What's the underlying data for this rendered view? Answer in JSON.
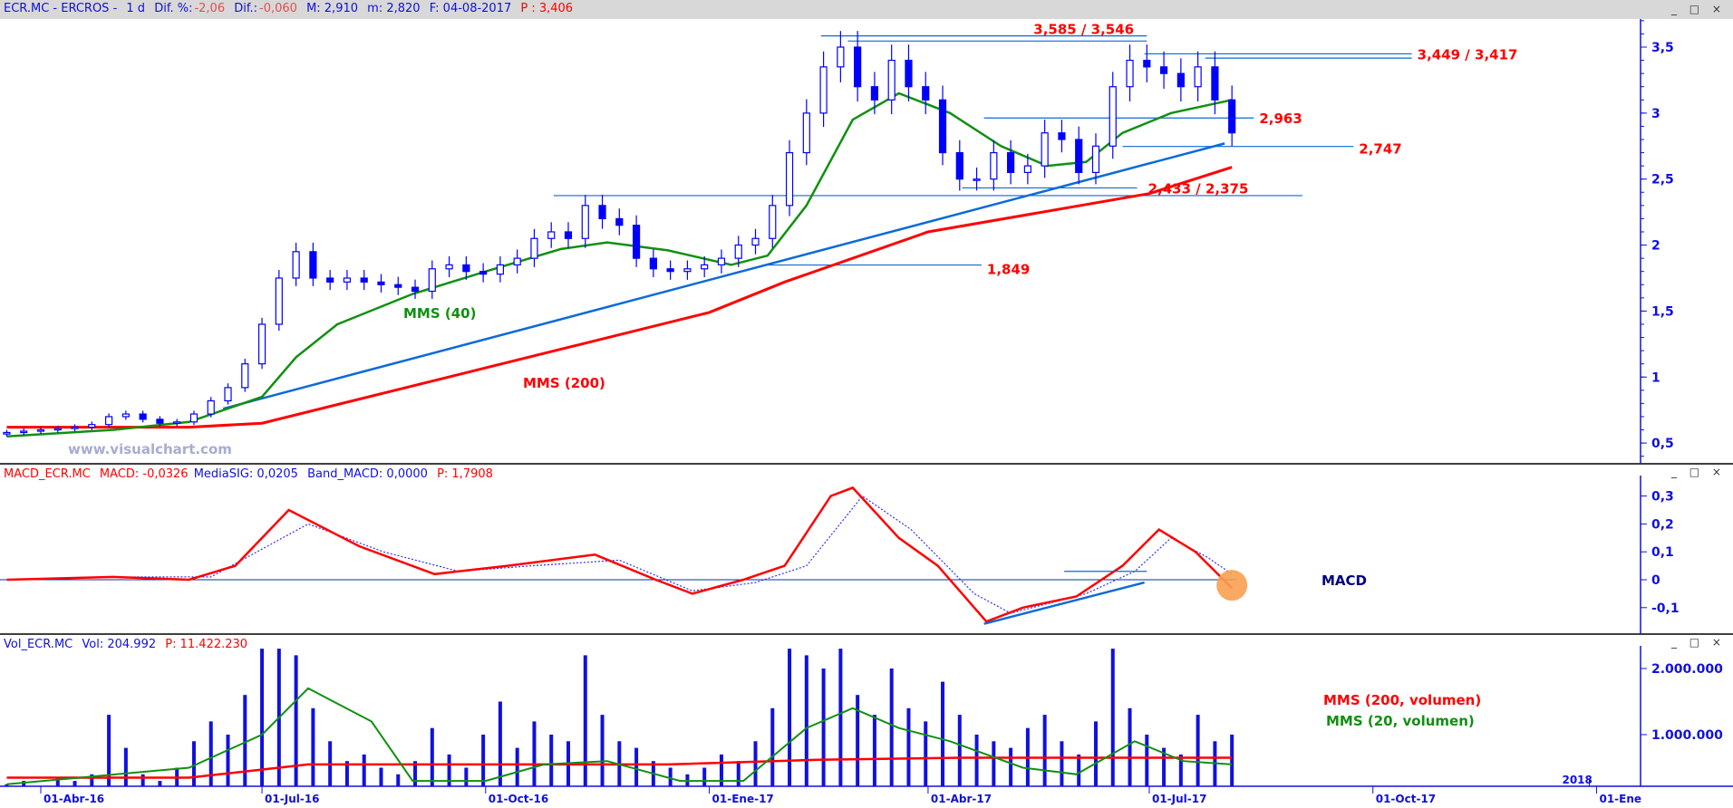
{
  "header": {
    "symbol": "ECR.MC - ERCROS -",
    "period": "1 d",
    "dif_pct_label": "Dif. %:",
    "dif_pct": "-2,06",
    "dif_label": "Dif.:",
    "dif": "-0,060",
    "max_label": "M: 2,910",
    "min_label": "m: 2,820",
    "date_label": "F: 04-08-2017",
    "price_label": "P : 3,406"
  },
  "macd_header": {
    "name": "MACD_ECR.MC",
    "macd": "MACD: -0,0326",
    "sig": "MediaSIG: 0,0205",
    "band": "Band_MACD: 0,0000",
    "p": "P: 1,7908"
  },
  "vol_header": {
    "name": "Vol_ECR.MC",
    "vol": "Vol: 204.992",
    "p": "P: 11.422.230"
  },
  "window_controls": "_ □ ×",
  "watermark": "www.visualchart.com",
  "labels": {
    "mms40": "MMS (40)",
    "mms200": "MMS (200)",
    "macd": "MACD",
    "vol200": "MMS (200, volumen)",
    "vol20": "MMS (20, volumen)"
  },
  "colors": {
    "candle": "#0000ff",
    "mms40": "#109010",
    "mms200": "#ff0000",
    "trend": "#0a6ad8",
    "level_text": "#ff0000",
    "macd": "#ff0000",
    "signal": "#3030ff",
    "highlight": "#f8a050"
  },
  "chart_data": {
    "type": "candlestick",
    "title": "ECR.MC - ERCROS - 1 d",
    "week_start": "2016-03-18",
    "weekly_close": [
      0.58,
      0.59,
      0.6,
      0.61,
      0.62,
      0.64,
      0.7,
      0.72,
      0.68,
      0.65,
      0.66,
      0.72,
      0.82,
      0.92,
      1.1,
      1.4,
      1.75,
      1.95,
      1.75,
      1.72,
      1.75,
      1.72,
      1.7,
      1.68,
      1.65,
      1.82,
      1.85,
      1.8,
      1.78,
      1.85,
      1.9,
      2.05,
      2.1,
      2.05,
      2.3,
      2.2,
      2.15,
      1.9,
      1.82,
      1.8,
      1.82,
      1.85,
      1.9,
      2.0,
      2.05,
      2.3,
      2.7,
      3.0,
      3.35,
      3.5,
      3.2,
      3.1,
      3.4,
      3.2,
      3.1,
      2.7,
      2.5,
      2.5,
      2.7,
      2.55,
      2.6,
      2.85,
      2.8,
      2.55,
      2.75,
      3.2,
      3.4,
      3.35,
      3.3,
      3.2,
      3.35,
      3.1,
      2.85
    ],
    "mms40": [
      [
        "2016-03-18",
        0.55
      ],
      [
        "2016-05-01",
        0.6
      ],
      [
        "2016-06-01",
        0.66
      ],
      [
        "2016-07-01",
        0.85
      ],
      [
        "2016-07-15",
        1.15
      ],
      [
        "2016-08-01",
        1.4
      ],
      [
        "2016-09-01",
        1.63
      ],
      [
        "2016-10-01",
        1.8
      ],
      [
        "2016-11-01",
        1.97
      ],
      [
        "2016-11-20",
        2.02
      ],
      [
        "2016-12-15",
        1.96
      ],
      [
        "2017-01-10",
        1.85
      ],
      [
        "2017-01-25",
        1.92
      ],
      [
        "2017-02-10",
        2.3
      ],
      [
        "2017-03-01",
        2.95
      ],
      [
        "2017-03-20",
        3.15
      ],
      [
        "2017-04-10",
        3.0
      ],
      [
        "2017-05-01",
        2.75
      ],
      [
        "2017-05-20",
        2.6
      ],
      [
        "2017-06-05",
        2.63
      ],
      [
        "2017-06-20",
        2.85
      ],
      [
        "2017-07-10",
        3.0
      ],
      [
        "2017-08-04",
        3.1
      ]
    ],
    "mms200": [
      [
        "2016-03-18",
        0.62
      ],
      [
        "2016-06-01",
        0.62
      ],
      [
        "2016-07-01",
        0.65
      ],
      [
        "2016-10-01",
        1.07
      ],
      [
        "2017-01-01",
        1.49
      ],
      [
        "2017-02-01",
        1.72
      ],
      [
        "2017-04-01",
        2.1
      ],
      [
        "2017-07-01",
        2.39
      ],
      [
        "2017-08-04",
        2.59
      ]
    ],
    "trendlines": [
      {
        "from": [
          "2016-06-15",
          0.76
        ],
        "to": [
          "2017-08-01",
          2.77
        ]
      }
    ],
    "levels": [
      {
        "value": 3.585,
        "from": "2017-02-16",
        "to": "2017-06-30",
        "label": "3,585 / 3,546"
      },
      {
        "value": 3.546,
        "from": "2017-02-27",
        "to": "2017-06-30",
        "label": ""
      },
      {
        "value": 3.449,
        "from": "2017-06-29",
        "to": "2017-10-17",
        "label": "3,449 / 3,417"
      },
      {
        "value": 3.417,
        "from": "2017-07-24",
        "to": "2017-10-17",
        "label": ""
      },
      {
        "value": 2.963,
        "from": "2017-04-24",
        "to": "2017-08-13",
        "label": "2,963"
      },
      {
        "value": 2.747,
        "from": "2017-06-20",
        "to": "2017-09-23",
        "label": "2,747"
      },
      {
        "value": 2.433,
        "from": "2017-04-15",
        "to": "2017-06-26",
        "label": "2,433 / 2,375"
      },
      {
        "value": 2.375,
        "from": "2016-10-29",
        "to": "2017-09-02",
        "label": ""
      },
      {
        "value": 1.849,
        "from": "2017-01-23",
        "to": "2017-04-23",
        "label": "1,849"
      }
    ],
    "price_axis": {
      "ticks": [
        "3,5",
        "3",
        "2,5",
        "2",
        "1,5",
        "1",
        "0,5"
      ],
      "values": [
        3.5,
        3,
        2.5,
        2,
        1.5,
        1,
        0.5
      ]
    },
    "macd": {
      "line": [
        [
          "2016-03-18",
          0.0
        ],
        [
          "2016-05-01",
          0.01
        ],
        [
          "2016-06-01",
          0.0
        ],
        [
          "2016-06-20",
          0.05
        ],
        [
          "2016-07-12",
          0.25
        ],
        [
          "2016-08-10",
          0.12
        ],
        [
          "2016-09-10",
          0.02
        ],
        [
          "2016-10-10",
          0.05
        ],
        [
          "2016-11-15",
          0.09
        ],
        [
          "2016-12-10",
          0.0
        ],
        [
          "2016-12-25",
          -0.05
        ],
        [
          "2017-01-15",
          0.0
        ],
        [
          "2017-02-01",
          0.05
        ],
        [
          "2017-02-20",
          0.3
        ],
        [
          "2017-03-01",
          0.33
        ],
        [
          "2017-03-20",
          0.15
        ],
        [
          "2017-04-05",
          0.05
        ],
        [
          "2017-04-25",
          -0.15
        ],
        [
          "2017-05-10",
          -0.1
        ],
        [
          "2017-06-01",
          -0.06
        ],
        [
          "2017-06-20",
          0.05
        ],
        [
          "2017-07-05",
          0.18
        ],
        [
          "2017-07-20",
          0.1
        ],
        [
          "2017-08-04",
          -0.03
        ]
      ],
      "signal": [
        [
          "2016-03-18",
          0.0
        ],
        [
          "2016-05-10",
          0.01
        ],
        [
          "2016-06-10",
          0.01
        ],
        [
          "2016-07-20",
          0.2
        ],
        [
          "2016-08-20",
          0.1
        ],
        [
          "2016-09-20",
          0.03
        ],
        [
          "2016-10-20",
          0.05
        ],
        [
          "2016-11-25",
          0.07
        ],
        [
          "2016-12-25",
          -0.04
        ],
        [
          "2017-01-20",
          -0.01
        ],
        [
          "2017-02-10",
          0.05
        ],
        [
          "2017-03-05",
          0.3
        ],
        [
          "2017-03-25",
          0.18
        ],
        [
          "2017-04-20",
          -0.05
        ],
        [
          "2017-05-05",
          -0.12
        ],
        [
          "2017-06-05",
          -0.05
        ],
        [
          "2017-06-25",
          0.03
        ],
        [
          "2017-07-10",
          0.15
        ],
        [
          "2017-07-25",
          0.08
        ],
        [
          "2017-08-04",
          0.02
        ]
      ],
      "trendline": {
        "from": [
          "2017-04-24",
          -0.158
        ],
        "to": [
          "2017-06-29",
          -0.01
        ]
      },
      "level": {
        "value": 0.03,
        "from": "2017-05-27",
        "to": "2017-06-30"
      },
      "highlight": [
        "2017-08-04",
        -0.02
      ],
      "axis": {
        "ticks": [
          "0,3",
          "0,2",
          "0,1",
          "0",
          "-0,1"
        ],
        "values": [
          0.3,
          0.2,
          0.1,
          0,
          -0.1
        ]
      }
    },
    "volume": {
      "weekly": [
        250000,
        300000,
        200000,
        350000,
        300000,
        400000,
        1300000,
        800000,
        400000,
        300000,
        500000,
        900000,
        1200000,
        1000000,
        1600000,
        2300000,
        2300000,
        2200000,
        1400000,
        900000,
        600000,
        700000,
        500000,
        400000,
        600000,
        1100000,
        700000,
        500000,
        1000000,
        1500000,
        800000,
        1200000,
        1000000,
        900000,
        2200000,
        1300000,
        900000,
        800000,
        600000,
        500000,
        400000,
        500000,
        700000,
        600000,
        900000,
        1400000,
        2300000,
        2200000,
        2000000,
        2300000,
        1600000,
        1300000,
        2000000,
        1400000,
        1200000,
        1800000,
        1300000,
        1000000,
        900000,
        800000,
        1100000,
        1300000,
        900000,
        700000,
        1200000,
        2300000,
        1400000,
        1000000,
        800000,
        700000,
        1300000,
        900000,
        1000000
      ],
      "mms20": [
        [
          "2016-03-18",
          250000
        ],
        [
          "2016-06-01",
          500000
        ],
        [
          "2016-07-01",
          1000000
        ],
        [
          "2016-07-20",
          1700000
        ],
        [
          "2016-08-15",
          1200000
        ],
        [
          "2016-09-01",
          300000
        ],
        [
          "2016-10-01",
          300000
        ],
        [
          "2016-10-25",
          550000
        ],
        [
          "2016-11-20",
          600000
        ],
        [
          "2016-12-20",
          300000
        ],
        [
          "2017-01-15",
          300000
        ],
        [
          "2017-02-10",
          1100000
        ],
        [
          "2017-03-01",
          1400000
        ],
        [
          "2017-03-20",
          1100000
        ],
        [
          "2017-04-10",
          900000
        ],
        [
          "2017-05-10",
          500000
        ],
        [
          "2017-06-01",
          400000
        ],
        [
          "2017-06-25",
          900000
        ],
        [
          "2017-07-15",
          600000
        ],
        [
          "2017-08-04",
          550000
        ]
      ],
      "mms200": [
        [
          "2016-03-18",
          350000
        ],
        [
          "2016-06-01",
          350000
        ],
        [
          "2016-07-20",
          550000
        ],
        [
          "2016-12-15",
          550000
        ],
        [
          "2017-02-15",
          620000
        ],
        [
          "2017-04-15",
          650000
        ],
        [
          "2017-08-04",
          650000
        ]
      ],
      "axis": {
        "ticks": [
          "2.000.000",
          "1.000.000"
        ],
        "values": [
          2000000,
          1000000
        ]
      }
    },
    "x_axis": {
      "ticks": [
        [
          "2016-04-01",
          "01-Abr-16"
        ],
        [
          "2016-07-01",
          "01-Jul-16"
        ],
        [
          "2016-10-01",
          "01-Oct-16"
        ],
        [
          "2017-01-01",
          "01-Ene-17"
        ],
        [
          "2017-04-01",
          "01-Abr-17"
        ],
        [
          "2017-07-01",
          "01-Jul-17"
        ],
        [
          "2017-10-01",
          "01-Oct-17"
        ],
        [
          "2018-01-01",
          "01-Ene"
        ]
      ],
      "year_label": "2018"
    }
  }
}
